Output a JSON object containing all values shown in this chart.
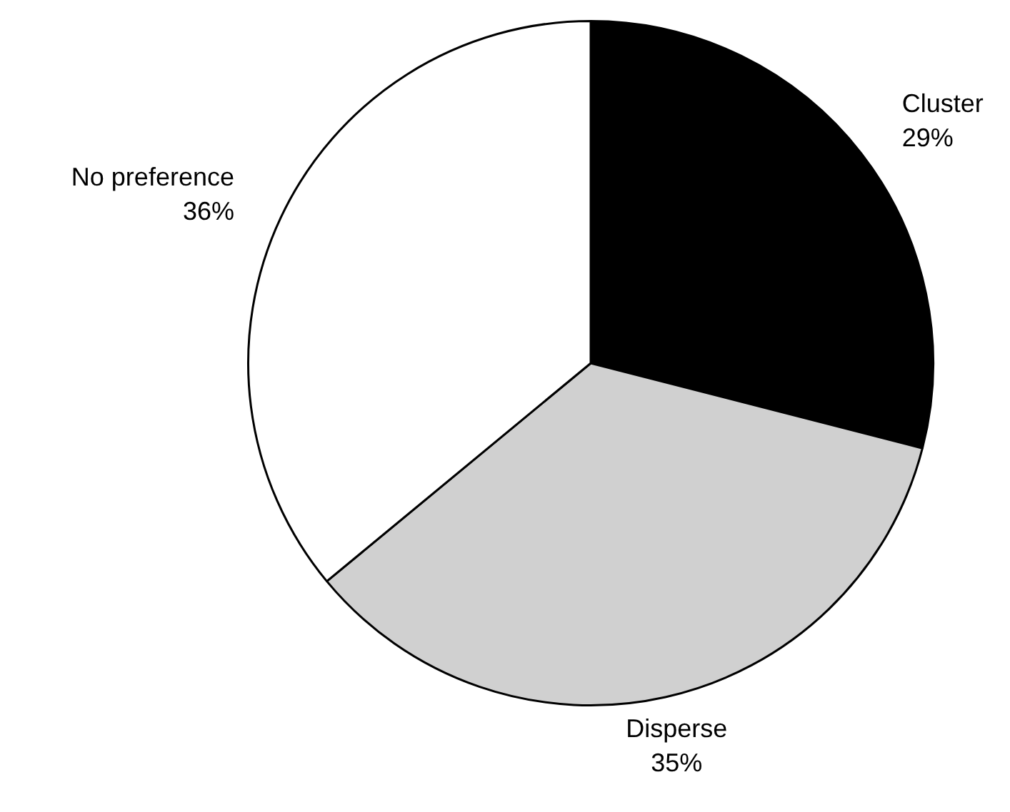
{
  "chart_data": {
    "type": "pie",
    "categories": [
      "Cluster",
      "Disperse",
      "No preference"
    ],
    "values": [
      29,
      35,
      36
    ],
    "value_labels": [
      "29%",
      "35%",
      "36%"
    ],
    "colors": [
      "#000000",
      "#d0d0d0",
      "#ffffff"
    ],
    "legend": false
  }
}
